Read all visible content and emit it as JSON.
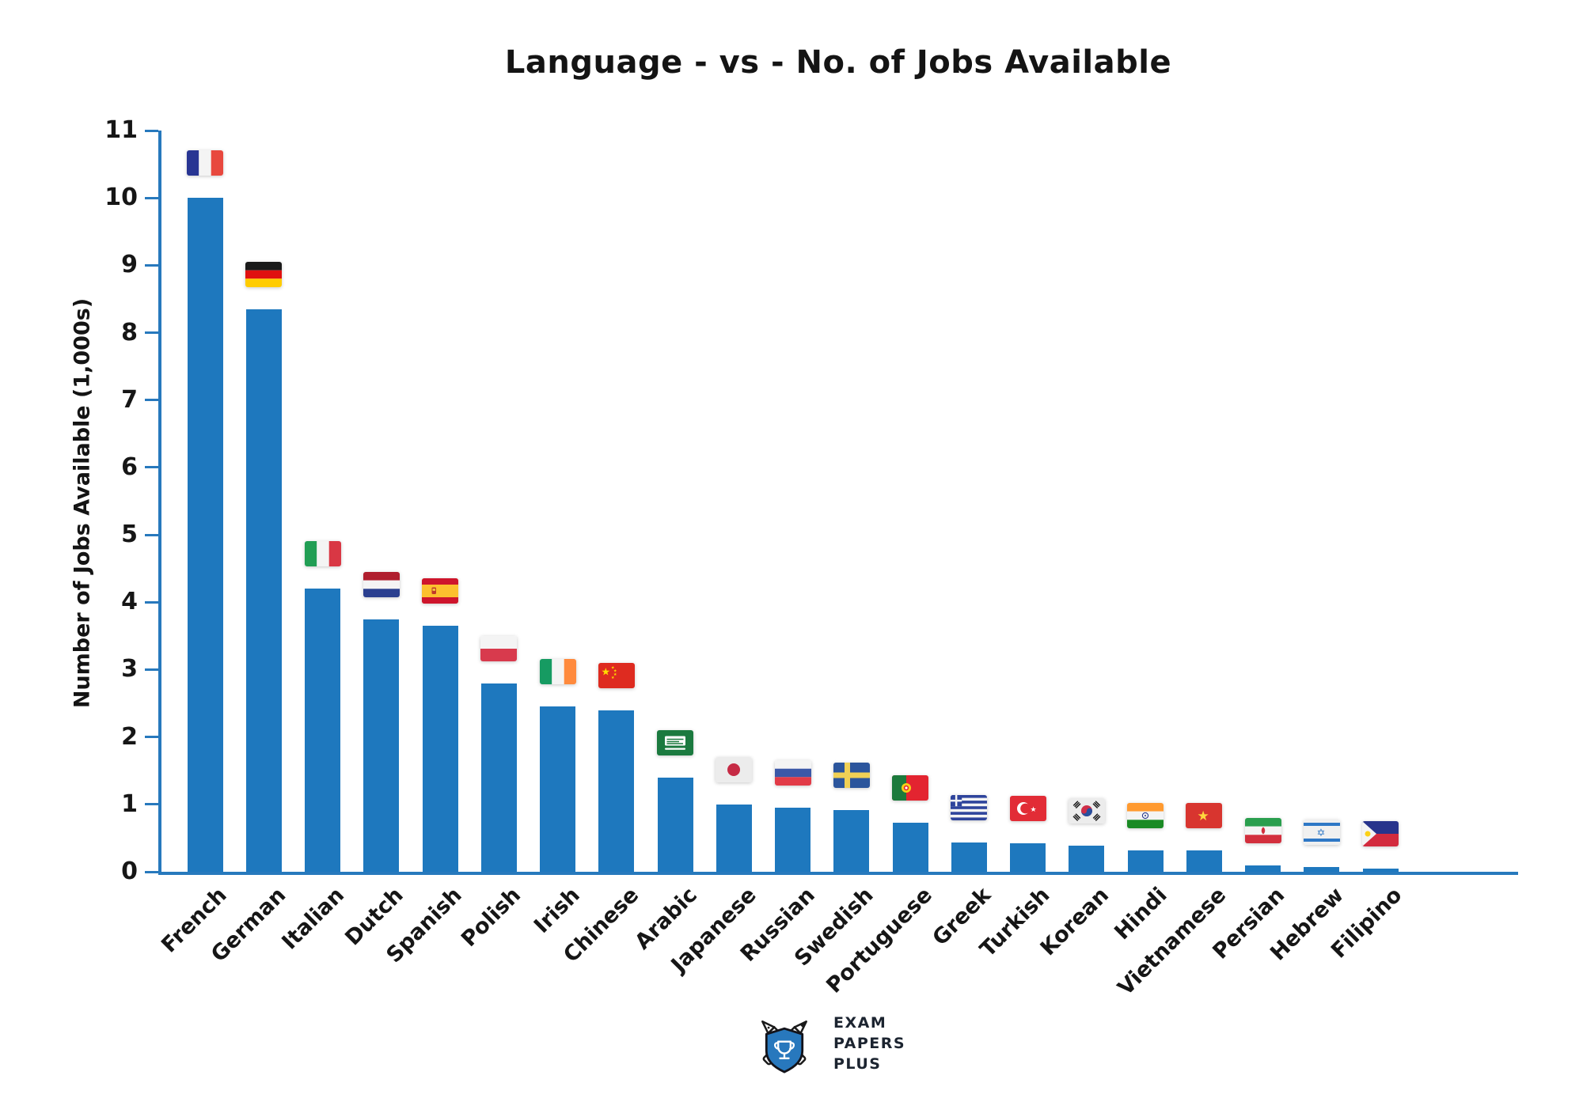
{
  "chart_data": {
    "type": "bar",
    "title": "Language - vs - No. of Jobs Available",
    "xlabel": "",
    "ylabel": "Number of Jobs Available (1,000s)",
    "ylim": [
      0,
      11
    ],
    "yticks": [
      0,
      1,
      2,
      3,
      4,
      5,
      6,
      7,
      8,
      9,
      10,
      11
    ],
    "grid": false,
    "legend_position": "none",
    "bar_color": "#1e78be",
    "axis_color": "#2779bd",
    "categories": [
      "French",
      "German",
      "Italian",
      "Dutch",
      "Spanish",
      "Polish",
      "Irish",
      "Chinese",
      "Arabic",
      "Japanese",
      "Russian",
      "Swedish",
      "Portuguese",
      "Greek",
      "Turkish",
      "Korean",
      "Hindi",
      "Vietnamese",
      "Persian",
      "Hebrew",
      "Filipino"
    ],
    "values": [
      10.0,
      8.35,
      4.2,
      3.75,
      3.65,
      2.8,
      2.45,
      2.4,
      1.4,
      1.0,
      0.95,
      0.92,
      0.73,
      0.43,
      0.42,
      0.39,
      0.32,
      0.32,
      0.09,
      0.07,
      0.05
    ],
    "flags": [
      "france",
      "germany",
      "italy",
      "netherlands",
      "spain",
      "poland",
      "ireland",
      "china",
      "saudi-arabia",
      "japan",
      "russia",
      "sweden",
      "portugal",
      "greece",
      "turkey",
      "south-korea",
      "india",
      "vietnam",
      "iran",
      "israel",
      "philippines"
    ]
  },
  "footer_logo": {
    "icon": "exam-papers-plus-crest",
    "lines": [
      "EXAM",
      "PAPERS",
      "PLUS"
    ]
  }
}
